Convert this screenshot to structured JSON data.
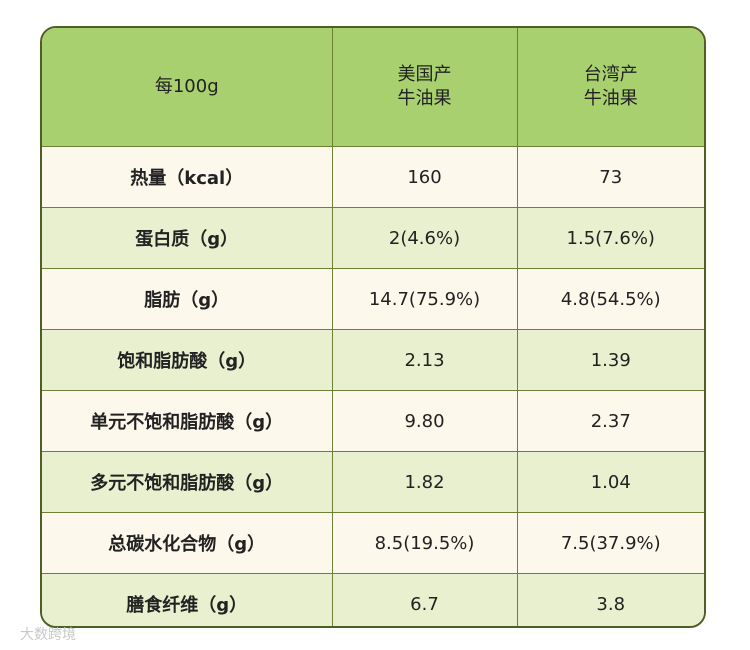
{
  "table": {
    "header": [
      "每100g",
      "美国产\n牛油果",
      "台湾产\n牛油果"
    ],
    "rows": [
      [
        "热量（kcal）",
        "160",
        "73"
      ],
      [
        "蛋白质（g）",
        "2(4.6%)",
        "1.5(7.6%)"
      ],
      [
        "脂肪（g）",
        "14.7(75.9%)",
        "4.8(54.5%)"
      ],
      [
        "饱和脂肪酸（g）",
        "2.13",
        "1.39"
      ],
      [
        "单元不饱和脂肪酸（g）",
        "9.80",
        "2.37"
      ],
      [
        "多元不饱和脂肪酸（g）",
        "1.82",
        "1.04"
      ],
      [
        "总碳水化合物（g）",
        "8.5(19.5%)",
        "7.5(37.9%)"
      ],
      [
        "膳食纤维（g）",
        "6.7",
        "3.8"
      ]
    ]
  },
  "watermark": "大数跨境"
}
